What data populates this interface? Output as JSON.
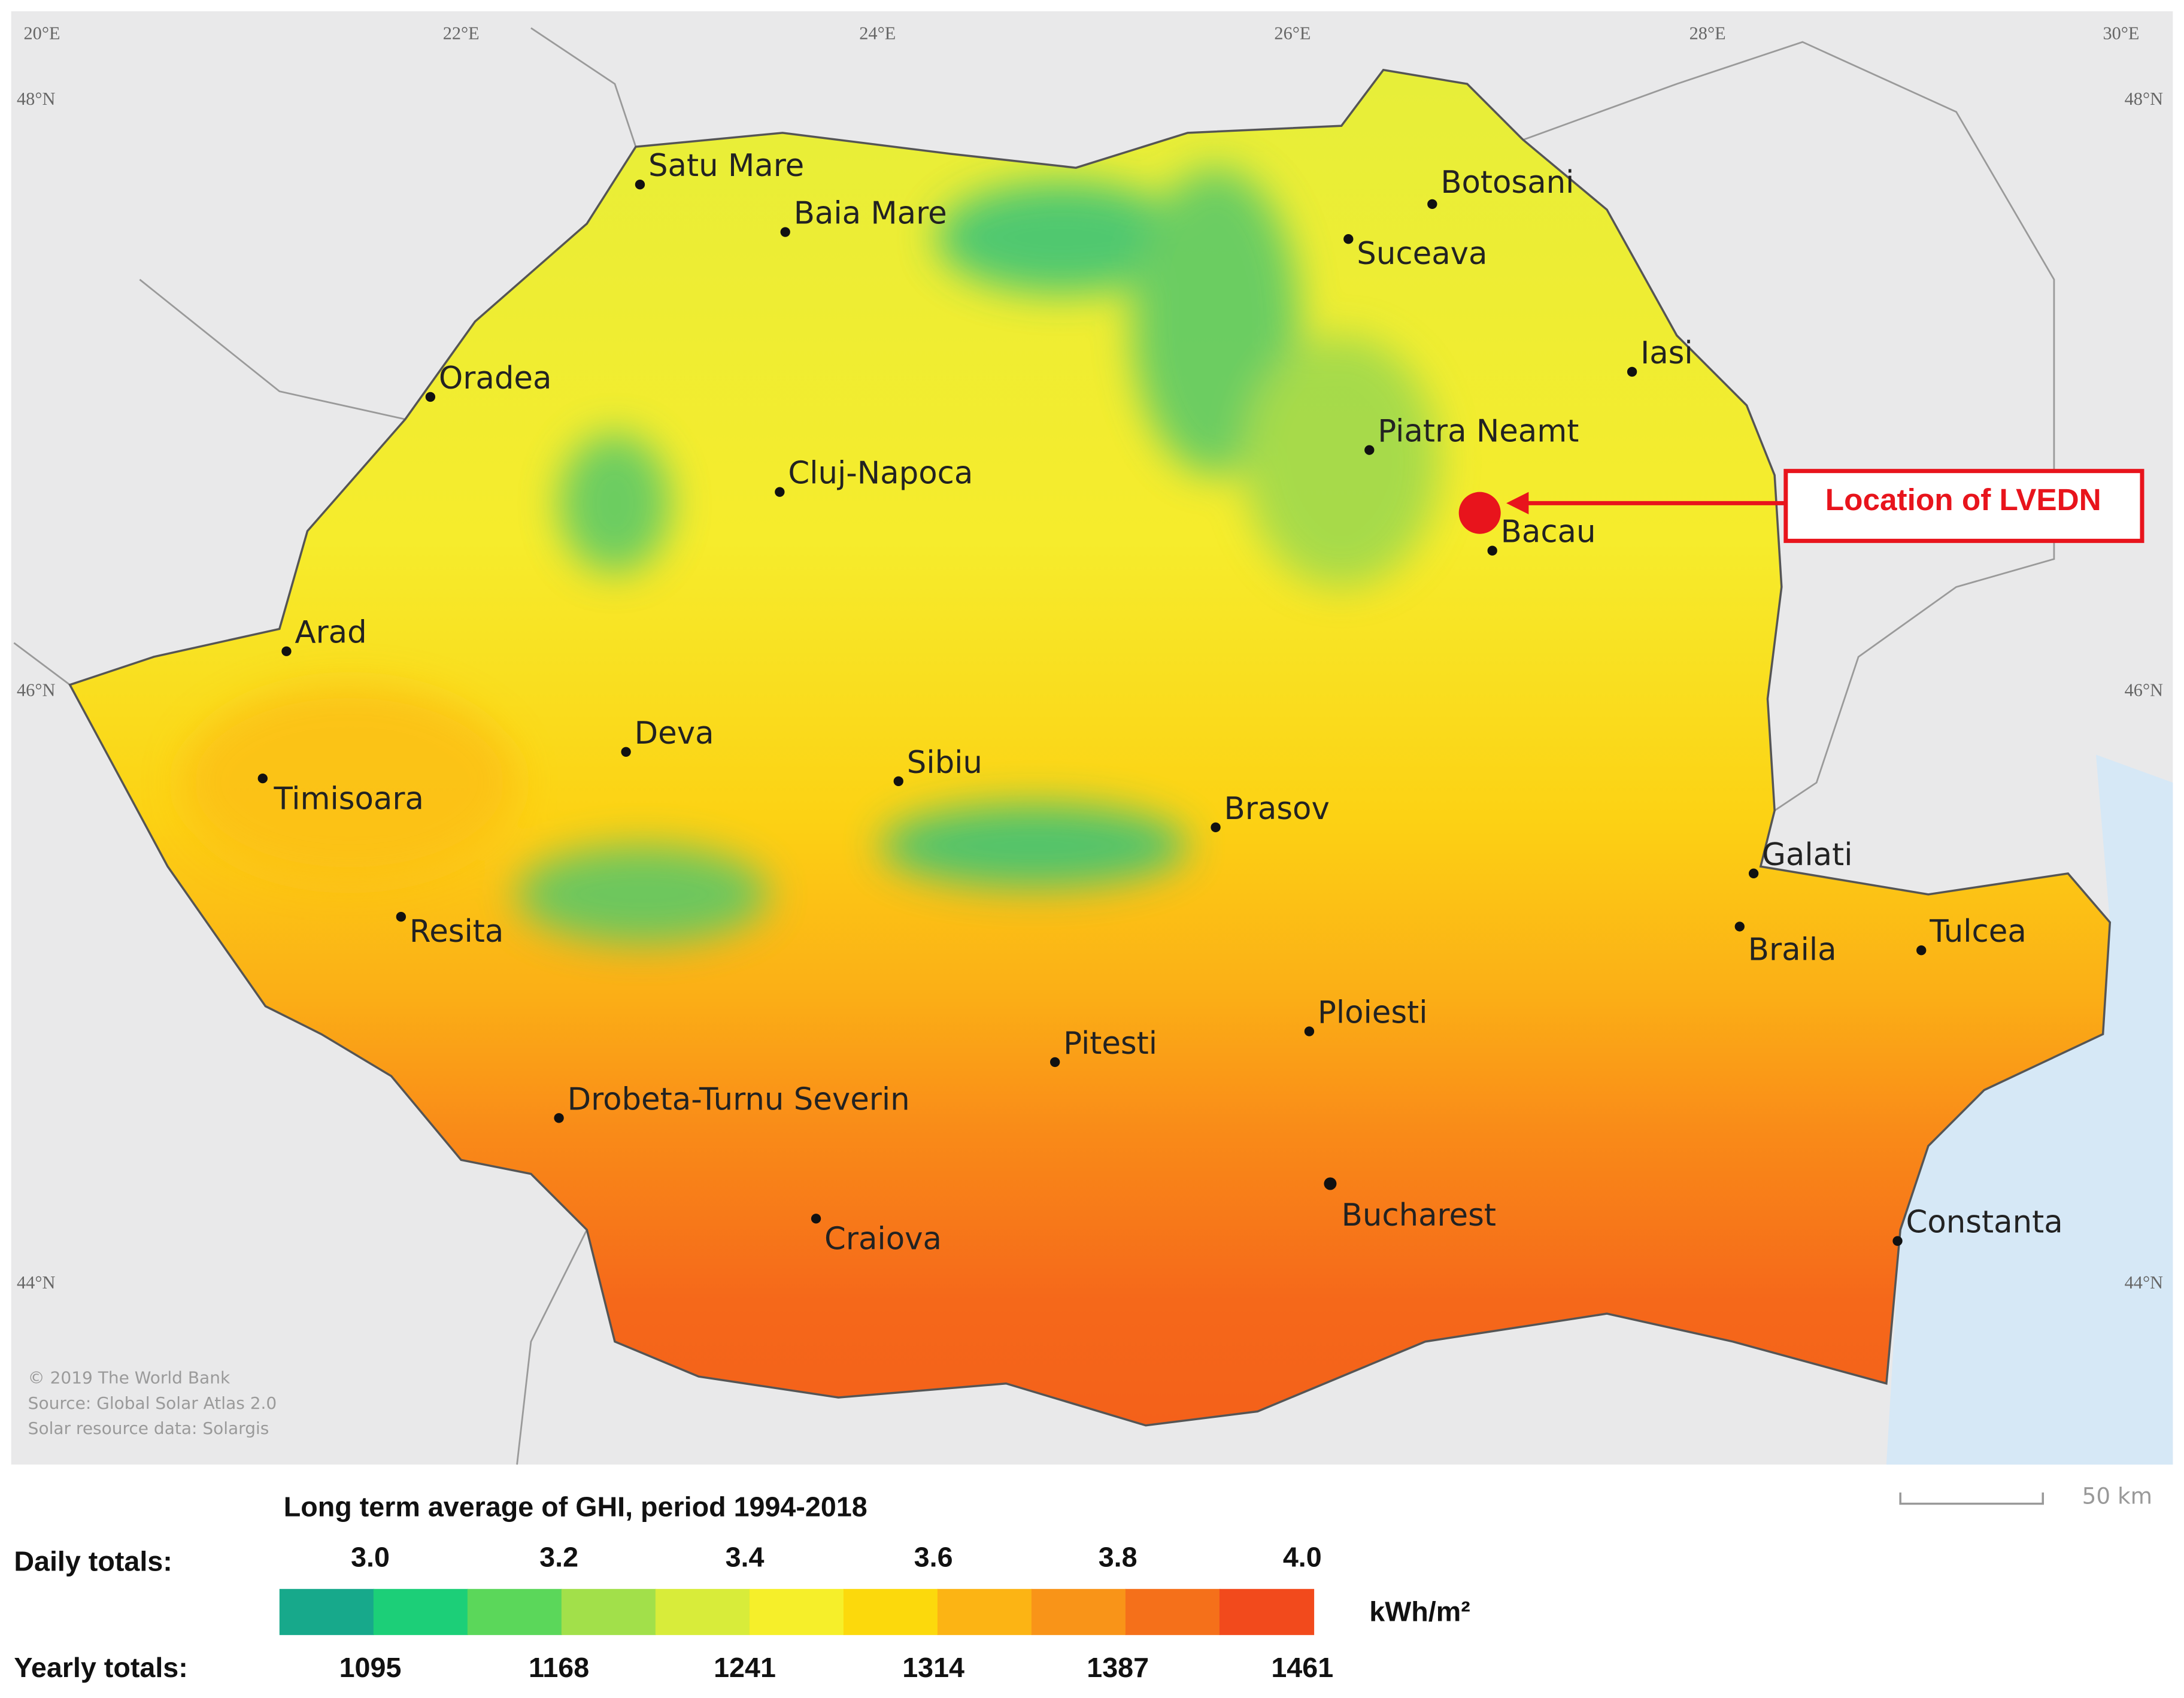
{
  "map": {
    "graticule": {
      "longitudes": [
        "20°E",
        "22°E",
        "24°E",
        "26°E",
        "28°E",
        "30°E"
      ],
      "latitudes": [
        "48°N",
        "46°N",
        "44°N"
      ]
    },
    "cities": [
      "Satu Mare",
      "Baia Mare",
      "Botosani",
      "Suceava",
      "Iasi",
      "Oradea",
      "Piatra Neamt",
      "Cluj-Napoca",
      "Bacau",
      "Arad",
      "Deva",
      "Sibiu",
      "Timisoara",
      "Brasov",
      "Galati",
      "Braila",
      "Tulcea",
      "Resita",
      "Ploiesti",
      "Pitesti",
      "Drobeta-Turnu Severin",
      "Bucharest",
      "Craiova",
      "Constanta"
    ],
    "annotation": "Location of LVEDN",
    "credits": [
      "© 2019 The World Bank",
      "Source: Global Solar Atlas 2.0",
      "Solar resource data: Solargis"
    ],
    "scale_bar": "50 km"
  },
  "legend": {
    "title": "Long term average of GHI, period 1994-2018",
    "daily_label": "Daily totals:",
    "daily": [
      "3.0",
      "3.2",
      "3.4",
      "3.6",
      "3.8",
      "4.0"
    ],
    "unit": "kWh/m²",
    "yearly_label": "Yearly totals:",
    "yearly": [
      1095,
      1168,
      1241,
      1314,
      1387,
      1461
    ],
    "colors": [
      "#17a98b",
      "#1ccf78",
      "#5bd75a",
      "#a2e04a",
      "#d8ec3a",
      "#f6ef2a",
      "#fcd90c",
      "#fcb414",
      "#f99418",
      "#f5701a",
      "#f24a1c"
    ]
  }
}
